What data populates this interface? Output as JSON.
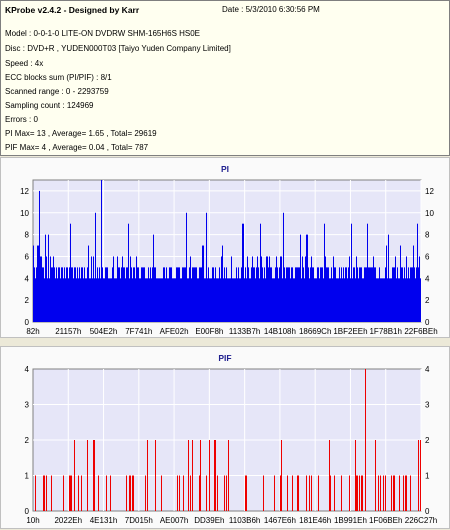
{
  "info": {
    "title": "KProbe v2.4.2 - Designed by Karr",
    "date": "Date : 5/3/2010 6:30:56 PM",
    "lines": [
      "Model : 0-0-1-0 LITE-ON DVDRW SHM-165H6S HS0E",
      "Disc : DVD+R , YUDEN000T03 [Taiyo Yuden Company Limited]",
      "Speed : 4x",
      "ECC blocks sum (PI/PIF) : 8/1",
      "Scanned range : 0 - 2293759",
      "Sampling count : 124969",
      "Errors : 0",
      "PI Max= 13 , Average= 1.65 , Total= 29619",
      "PIF Max= 4 , Average= 0.04 , Total= 787"
    ]
  },
  "colors": {
    "pi_bars": "#0000ee",
    "pif_bars": "#ee0000",
    "plot_bg": "#e6e6f8",
    "grid": "#ffffff"
  },
  "chart_data": [
    {
      "type": "bar",
      "title": "PI",
      "ylim": [
        0,
        13
      ],
      "yticks": [
        "0",
        "2",
        "4",
        "6",
        "8",
        "10",
        "12"
      ],
      "xticks": [
        "82h",
        "21157h",
        "504E2h",
        "7F741h",
        "AFE02h",
        "E00F8h",
        "1133B7h",
        "14B108h",
        "18669Ch",
        "1BF2EEh",
        "1F78B1h",
        "22F6BEh"
      ],
      "baseline": 4,
      "max": 13,
      "average": 1.65,
      "peaks": [
        {
          "x": 0.015,
          "v": 12
        },
        {
          "x": 0.095,
          "v": 9
        },
        {
          "x": 0.16,
          "v": 10
        },
        {
          "x": 0.175,
          "v": 13
        },
        {
          "x": 0.245,
          "v": 9
        },
        {
          "x": 0.31,
          "v": 8
        },
        {
          "x": 0.395,
          "v": 10
        },
        {
          "x": 0.445,
          "v": 10
        },
        {
          "x": 0.54,
          "v": 9
        },
        {
          "x": 0.585,
          "v": 9
        },
        {
          "x": 0.645,
          "v": 10
        },
        {
          "x": 0.705,
          "v": 8
        },
        {
          "x": 0.75,
          "v": 9
        },
        {
          "x": 0.82,
          "v": 9
        },
        {
          "x": 0.86,
          "v": 9
        },
        {
          "x": 0.915,
          "v": 8
        },
        {
          "x": 0.99,
          "v": 9
        }
      ]
    },
    {
      "type": "bar",
      "title": "PIF",
      "ylim": [
        0,
        4
      ],
      "yticks": [
        "0",
        "1",
        "2",
        "3",
        "4"
      ],
      "xticks": [
        "10h",
        "2022Eh",
        "4E131h",
        "7D015h",
        "AE007h",
        "DD39Eh",
        "1103B6h",
        "1467E6h",
        "181E46h",
        "1B991Eh",
        "1F06BEh",
        "226C27h"
      ],
      "max": 4,
      "average": 0.04,
      "peaks": [
        {
          "x": 0.855,
          "v": 4
        }
      ]
    }
  ]
}
